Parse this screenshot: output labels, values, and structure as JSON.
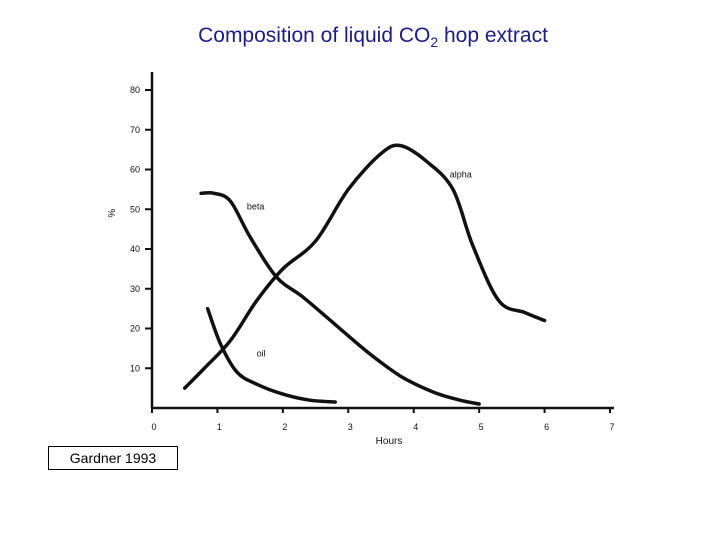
{
  "title": {
    "prefix": "Composition of liquid CO",
    "subscript": "2",
    "suffix": " hop extract"
  },
  "source": "Gardner 1993",
  "chart_data": {
    "type": "line",
    "xlabel": "Hours",
    "ylabel": "%",
    "xlim": [
      0,
      7
    ],
    "ylim": [
      0,
      80
    ],
    "xticks": [
      0,
      1,
      2,
      3,
      4,
      5,
      6,
      7
    ],
    "yticks": [
      10,
      20,
      30,
      40,
      50,
      60,
      70,
      80
    ],
    "grid": false,
    "series": [
      {
        "name": "alpha",
        "points": [
          [
            0.5,
            5
          ],
          [
            0.8,
            10
          ],
          [
            1.2,
            17
          ],
          [
            1.6,
            27
          ],
          [
            2.0,
            35
          ],
          [
            2.5,
            42
          ],
          [
            3.0,
            55
          ],
          [
            3.5,
            64
          ],
          [
            3.8,
            66
          ],
          [
            4.2,
            62
          ],
          [
            4.6,
            55
          ],
          [
            4.9,
            41
          ],
          [
            5.3,
            27
          ],
          [
            5.7,
            24
          ],
          [
            6.0,
            22
          ]
        ]
      },
      {
        "name": "beta",
        "points": [
          [
            0.75,
            54
          ],
          [
            0.95,
            54
          ],
          [
            1.2,
            52
          ],
          [
            1.5,
            43
          ],
          [
            1.9,
            33
          ],
          [
            2.3,
            28
          ],
          [
            2.8,
            21
          ],
          [
            3.3,
            14
          ],
          [
            3.8,
            8
          ],
          [
            4.3,
            4
          ],
          [
            4.7,
            2
          ],
          [
            5.0,
            1
          ]
        ]
      },
      {
        "name": "oil",
        "points": [
          [
            0.85,
            25
          ],
          [
            1.05,
            16
          ],
          [
            1.3,
            9
          ],
          [
            1.6,
            6
          ],
          [
            2.0,
            3.5
          ],
          [
            2.4,
            2
          ],
          [
            2.8,
            1.5
          ]
        ]
      }
    ]
  }
}
